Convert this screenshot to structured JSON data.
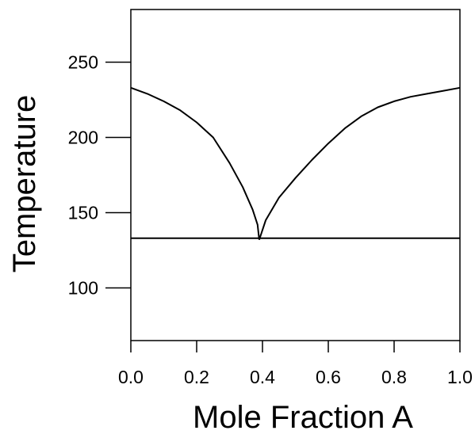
{
  "chart_data": {
    "type": "line",
    "title": "",
    "xlabel": "Mole Fraction A",
    "ylabel": "Temperature",
    "xlim": [
      0.0,
      1.0
    ],
    "ylim": [
      65,
      285
    ],
    "xticks": [
      0.0,
      0.2,
      0.4,
      0.6,
      0.8,
      1.0
    ],
    "xtick_labels": [
      "0.0",
      "0.2",
      "0.4",
      "0.6",
      "0.8",
      "1.0"
    ],
    "yticks": [
      100,
      150,
      200,
      250
    ],
    "ytick_labels": [
      "100",
      "150",
      "200",
      "250"
    ],
    "grid": false,
    "legend": "none",
    "line_color": "#000000",
    "series": [
      {
        "x": [
          0.0,
          0.05,
          0.1,
          0.15,
          0.2,
          0.25,
          0.3,
          0.34,
          0.37,
          0.385,
          0.39
        ],
        "y": [
          233,
          229,
          224,
          218,
          210,
          200,
          183,
          167,
          152,
          142,
          132
        ]
      },
      {
        "x": [
          0.39,
          0.41,
          0.45,
          0.5,
          0.55,
          0.6,
          0.65,
          0.7,
          0.75,
          0.8,
          0.85,
          0.9,
          0.95,
          1.0
        ],
        "y": [
          132,
          145,
          160,
          173,
          185,
          196,
          206,
          214,
          220,
          224,
          227,
          229,
          231,
          233
        ]
      },
      {
        "x": [
          0.0,
          1.0
        ],
        "y": [
          133,
          133
        ]
      }
    ]
  }
}
